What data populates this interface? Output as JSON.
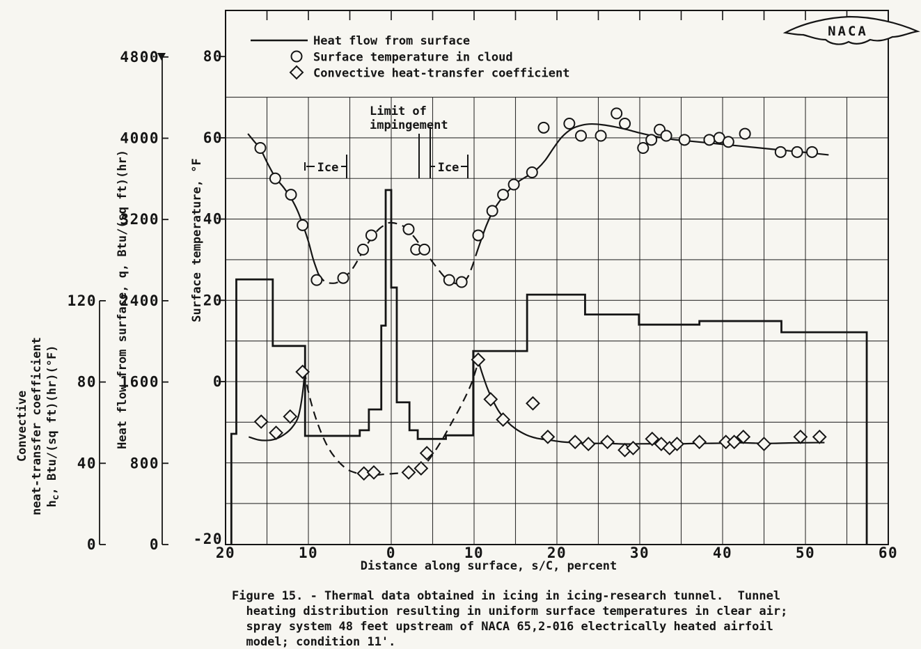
{
  "page": {
    "paper_color": "#f7f6f1",
    "ink_color": "#151515"
  },
  "logo": {
    "text": "NACA"
  },
  "legend": {
    "items": [
      {
        "marker": "line-icon",
        "label": "Heat flow from surface"
      },
      {
        "marker": "circle-icon",
        "label": "Surface temperature in cloud"
      },
      {
        "marker": "diamond-icon",
        "label": "Convective heat-transfer coefficient"
      }
    ]
  },
  "annotations": {
    "limit": [
      "Limit of",
      "impingement"
    ],
    "ice_left": "Ice",
    "ice_right": "Ice"
  },
  "caption": {
    "lines": [
      "Figure 15. - Thermal data obtained in icing in icing-research tunnel.  Tunnel",
      "  heating distribution resulting in uniform surface temperatures in clear air;",
      "  spray system 48 feet upstream of NACA 65,2-016 electrically heated airfoil",
      "  model; condition 11'."
    ]
  },
  "chart_data": {
    "type": "line",
    "title": "",
    "grid": {
      "x_min": -20,
      "x_max": 60,
      "x_step": 5,
      "temp_top_gridline": 70,
      "temp_bottom_gridline": -30
    },
    "x_axis": {
      "label": "Distance along surface, s/C, percent",
      "range": [
        -20,
        60
      ],
      "tick_labels": [
        {
          "s": -20,
          "label": "20"
        },
        {
          "s": -10,
          "label": "10"
        },
        {
          "s": 0,
          "label": "0"
        },
        {
          "s": 10,
          "label": "10"
        },
        {
          "s": 20,
          "label": "20"
        },
        {
          "s": 30,
          "label": "30"
        },
        {
          "s": 40,
          "label": "40"
        },
        {
          "s": 50,
          "label": "50"
        },
        {
          "s": 60,
          "label": "60"
        }
      ]
    },
    "temp_axis": {
      "label": "Surface temperature, °F",
      "ticks": [
        80,
        60,
        40,
        20,
        0
      ],
      "corner_tick": "-20",
      "range": [
        -20,
        80
      ]
    },
    "q_axis": {
      "label": "Heat flow from surface, q, Btu/(sq ft)(hr)",
      "ticks": [
        4800,
        4000,
        3200,
        2400,
        1600,
        800,
        0
      ],
      "range": [
        0,
        4800
      ]
    },
    "hc_axis": {
      "label_lines": [
        "Convective",
        "neat-transfer coefficient"
      ],
      "label_line3_parts": [
        {
          "t": "h"
        },
        {
          "t": "c",
          "sub": true
        },
        {
          "t": ", Btu/(sq ft)(hr)(°F)"
        }
      ],
      "ticks": [
        120,
        80,
        40,
        0
      ],
      "range": [
        0,
        120
      ]
    },
    "series": {
      "heat_flow": {
        "name": "Heat flow from surface",
        "unit": "Btu/(sq ft)(hr)",
        "plateaus": [
          [
            -19.3,
            -18.7,
            1090
          ],
          [
            -18.7,
            -14.3,
            2610
          ],
          [
            -14.3,
            -10.4,
            1955
          ],
          [
            -10.4,
            -3.8,
            1070
          ],
          [
            -3.8,
            -2.7,
            1125
          ],
          [
            -2.7,
            -1.2,
            1330
          ],
          [
            -1.2,
            -0.67,
            2155
          ],
          [
            -0.67,
            0.0,
            3490
          ],
          [
            0.0,
            0.67,
            2530
          ],
          [
            0.67,
            2.2,
            1400
          ],
          [
            2.2,
            3.2,
            1125
          ],
          [
            3.2,
            6.6,
            1040
          ],
          [
            6.6,
            9.9,
            1075
          ],
          [
            9.9,
            16.4,
            1905
          ],
          [
            16.4,
            23.4,
            2460
          ],
          [
            23.4,
            29.9,
            2265
          ],
          [
            29.9,
            37.2,
            2165
          ],
          [
            37.2,
            47.1,
            2200
          ],
          [
            47.1,
            57.4,
            2090
          ]
        ]
      },
      "surface_temp": {
        "name": "Surface temperature in cloud",
        "unit": "°F",
        "points": [
          [
            -15.8,
            57.5
          ],
          [
            -14,
            50
          ],
          [
            -12.1,
            46
          ],
          [
            -10.7,
            38.5
          ],
          [
            -9,
            25
          ],
          [
            -5.8,
            25.5
          ],
          [
            -3.4,
            32.5
          ],
          [
            -2.4,
            36
          ],
          [
            2.1,
            37.5
          ],
          [
            3,
            32.5
          ],
          [
            4,
            32.5
          ],
          [
            7,
            25
          ],
          [
            8.5,
            24.5
          ],
          [
            10.5,
            36
          ],
          [
            12.2,
            42
          ],
          [
            13.5,
            46
          ],
          [
            14.8,
            48.5
          ],
          [
            17,
            51.5
          ],
          [
            18.4,
            62.5
          ],
          [
            21.5,
            63.5
          ],
          [
            22.9,
            60.5
          ],
          [
            25.3,
            60.5
          ],
          [
            27.2,
            66
          ],
          [
            28.2,
            63.5
          ],
          [
            30.4,
            57.5
          ],
          [
            31.4,
            59.5
          ],
          [
            32.4,
            62
          ],
          [
            33.2,
            60.5
          ],
          [
            35.4,
            59.5
          ],
          [
            38.4,
            59.5
          ],
          [
            39.6,
            60
          ],
          [
            40.7,
            59
          ],
          [
            42.7,
            61
          ],
          [
            47,
            56.5
          ],
          [
            49,
            56.5
          ],
          [
            50.8,
            56.5
          ]
        ],
        "curve_solid1": [
          [
            -17.3,
            61
          ],
          [
            -16.5,
            59
          ],
          [
            -15.8,
            57.3
          ],
          [
            -15,
            54
          ],
          [
            -14,
            50.3
          ],
          [
            -13,
            47.8
          ],
          [
            -12,
            44.8
          ],
          [
            -11.3,
            42
          ],
          [
            -10.7,
            38.8
          ],
          [
            -10,
            34.5
          ],
          [
            -9.4,
            30
          ],
          [
            -8.8,
            26.5
          ]
        ],
        "curve_dashed": [
          [
            -8.8,
            26.5
          ],
          [
            -8,
            24.6
          ],
          [
            -7,
            24.2
          ],
          [
            -6.3,
            24.6
          ],
          [
            -5.6,
            25.7
          ],
          [
            -4.6,
            28
          ],
          [
            -3.5,
            31.8
          ],
          [
            -2.5,
            35
          ],
          [
            -1.5,
            37.5
          ],
          [
            -0.5,
            38.9
          ],
          [
            0,
            39.1
          ],
          [
            0.8,
            38.8
          ],
          [
            1.8,
            37.8
          ],
          [
            2.8,
            35.5
          ],
          [
            3.7,
            33
          ],
          [
            4.6,
            30.5
          ],
          [
            5.6,
            27.8
          ],
          [
            6.6,
            25.4
          ],
          [
            7.5,
            24.3
          ],
          [
            8.4,
            24.2
          ],
          [
            9.2,
            25.6
          ],
          [
            9.8,
            28.5
          ],
          [
            10.2,
            31
          ]
        ],
        "curve_solid2": [
          [
            10.2,
            31
          ],
          [
            10.7,
            34
          ],
          [
            11.5,
            38.5
          ],
          [
            12.3,
            42
          ],
          [
            13.3,
            45
          ],
          [
            14.3,
            47.3
          ],
          [
            15.4,
            49.3
          ],
          [
            16.6,
            50.8
          ],
          [
            17.6,
            52.3
          ],
          [
            18.6,
            54.5
          ],
          [
            19.6,
            57.5
          ],
          [
            20.6,
            60.2
          ],
          [
            21.8,
            62.2
          ],
          [
            23,
            63.1
          ],
          [
            24.2,
            63.4
          ],
          [
            25.5,
            63.2
          ],
          [
            27,
            62.7
          ],
          [
            28.5,
            62
          ],
          [
            30,
            61.2
          ],
          [
            32,
            60.3
          ],
          [
            34,
            59.6
          ],
          [
            36,
            59.2
          ],
          [
            38,
            58.8
          ],
          [
            40,
            58.4
          ],
          [
            42,
            58
          ],
          [
            44,
            57.6
          ],
          [
            46,
            57.2
          ],
          [
            48,
            56.8
          ],
          [
            50,
            56.4
          ],
          [
            52.8,
            55.8
          ]
        ]
      },
      "hc": {
        "name": "Convective heat-transfer coefficient",
        "unit": "Btu/(sq ft)(hr)(°F)",
        "points": [
          [
            -15.7,
            60.5
          ],
          [
            -13.9,
            55
          ],
          [
            -12.2,
            63
          ],
          [
            -10.7,
            85
          ],
          [
            -3.3,
            35
          ],
          [
            -2.1,
            35.5
          ],
          [
            2.1,
            35.5
          ],
          [
            3.6,
            37.5
          ],
          [
            4.3,
            45
          ],
          [
            10.5,
            91
          ],
          [
            12,
            71.5
          ],
          [
            13.5,
            61.5
          ],
          [
            17.1,
            69.5
          ],
          [
            18.9,
            53
          ],
          [
            22.2,
            50.5
          ],
          [
            23.8,
            49.5
          ],
          [
            26.1,
            50.5
          ],
          [
            28.2,
            46.5
          ],
          [
            29.2,
            47.5
          ],
          [
            31.5,
            52
          ],
          [
            32.6,
            49.5
          ],
          [
            33.6,
            47.5
          ],
          [
            34.5,
            49.5
          ],
          [
            37.2,
            50.5
          ],
          [
            40.4,
            50.5
          ],
          [
            41.4,
            50.5
          ],
          [
            42.5,
            53
          ],
          [
            45,
            49.5
          ],
          [
            49.4,
            53
          ],
          [
            51.7,
            53
          ]
        ],
        "curve_solid1": [
          [
            -17.2,
            53
          ],
          [
            -16,
            51.5
          ],
          [
            -14.8,
            51.3
          ],
          [
            -13.8,
            52.2
          ],
          [
            -12.8,
            54.5
          ],
          [
            -12,
            57.5
          ],
          [
            -11.3,
            62
          ],
          [
            -10.9,
            69
          ],
          [
            -10.6,
            78
          ],
          [
            -10.45,
            85.5
          ]
        ],
        "curve_dashed": [
          [
            -10.45,
            85.5
          ],
          [
            -10.1,
            77
          ],
          [
            -9.4,
            66
          ],
          [
            -8.5,
            55.5
          ],
          [
            -7.5,
            47
          ],
          [
            -6.4,
            41
          ],
          [
            -5.3,
            37
          ],
          [
            -4.2,
            35.2
          ],
          [
            -3.1,
            34.3
          ],
          [
            -2,
            34.2
          ],
          [
            -0.8,
            34.6
          ],
          [
            0.5,
            35
          ],
          [
            1.7,
            35.4
          ],
          [
            2.8,
            36.3
          ],
          [
            3.7,
            38
          ],
          [
            4.4,
            41
          ],
          [
            5.2,
            45.5
          ],
          [
            6.2,
            52
          ],
          [
            7.3,
            60
          ],
          [
            8.5,
            69
          ],
          [
            9.6,
            78.5
          ],
          [
            10.3,
            87
          ]
        ],
        "curve_solid2": [
          [
            10.5,
            90.5
          ],
          [
            11,
            84
          ],
          [
            11.6,
            77
          ],
          [
            12.2,
            71.5
          ],
          [
            13,
            65.5
          ],
          [
            14,
            60.5
          ],
          [
            15,
            57
          ],
          [
            16.3,
            54
          ],
          [
            17.6,
            52.3
          ],
          [
            19,
            51.5
          ],
          [
            20.5,
            50.6
          ],
          [
            22,
            50.2
          ],
          [
            24,
            49.8
          ],
          [
            26,
            49.8
          ],
          [
            28,
            49.5
          ],
          [
            30,
            49.6
          ],
          [
            32,
            49.6
          ],
          [
            34,
            49.4
          ],
          [
            36,
            49.7
          ],
          [
            38,
            49.8
          ],
          [
            40,
            49.9
          ],
          [
            42,
            50.1
          ],
          [
            44,
            49.9
          ],
          [
            46,
            49.8
          ],
          [
            48,
            50
          ],
          [
            50,
            50.1
          ],
          [
            52.3,
            50.2
          ]
        ]
      }
    }
  }
}
